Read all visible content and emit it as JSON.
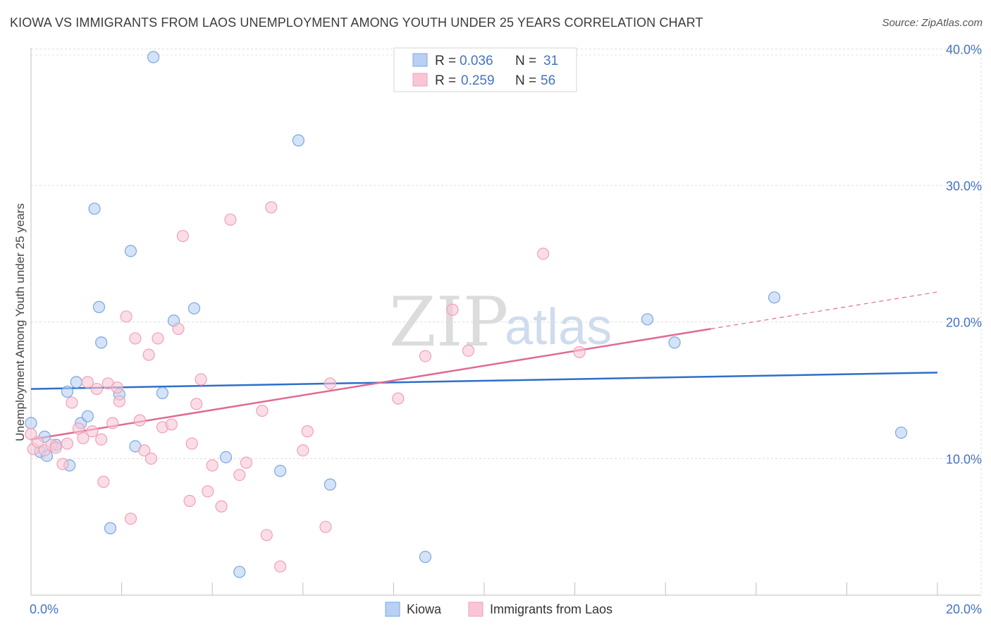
{
  "title": "KIOWA VS IMMIGRANTS FROM LAOS UNEMPLOYMENT AMONG YOUTH UNDER 25 YEARS CORRELATION CHART",
  "source": "Source: ZipAtlas.com",
  "watermark": {
    "zip": "ZIP",
    "atlas": "atlas"
  },
  "legend": {
    "rows": [
      {
        "r_label": "R = ",
        "r_value": "0.036",
        "n_label": "N = ",
        "n_value": "31"
      },
      {
        "r_label": "R = ",
        "r_value": "0.259",
        "n_label": "N = ",
        "n_value": "56"
      }
    ]
  },
  "bottom_legend": [
    "Kiowa",
    "Immigrants from Laos"
  ],
  "chart_data": {
    "type": "scatter",
    "title": "KIOWA VS IMMIGRANTS FROM LAOS UNEMPLOYMENT AMONG YOUTH UNDER 25 YEARS CORRELATION CHART",
    "xlabel": "",
    "ylabel": "Unemployment Among Youth under 25 years",
    "xlim": [
      0,
      20
    ],
    "ylim": [
      0,
      41
    ],
    "x_tick_labels": [
      {
        "value": 0,
        "label": "0.0%"
      },
      {
        "value": 20,
        "label": "20.0%"
      }
    ],
    "y_tick_labels": [
      {
        "value": 10,
        "label": "10.0%"
      },
      {
        "value": 20,
        "label": "20.0%"
      },
      {
        "value": 30,
        "label": "30.0%"
      },
      {
        "value": 40,
        "label": "40.0%"
      }
    ],
    "colors": {
      "kiowa": "#7aa7e0",
      "kiowa_line": "#2e6fc9",
      "laos": "#f0a0b8",
      "laos_line": "#e06a93",
      "tick": "#4472c4"
    },
    "series": [
      {
        "name": "Kiowa",
        "r": 0.036,
        "n": 31,
        "trend": {
          "x": [
            0,
            20
          ],
          "y": [
            15.1,
            16.3
          ]
        },
        "points": [
          [
            0.0,
            12.6
          ],
          [
            0.2,
            10.5
          ],
          [
            0.3,
            11.6
          ],
          [
            0.35,
            10.2
          ],
          [
            0.55,
            11.0
          ],
          [
            0.8,
            14.9
          ],
          [
            0.85,
            9.5
          ],
          [
            1.0,
            15.6
          ],
          [
            1.1,
            12.6
          ],
          [
            1.25,
            13.1
          ],
          [
            1.4,
            28.3
          ],
          [
            1.5,
            21.1
          ],
          [
            1.55,
            18.5
          ],
          [
            1.75,
            4.9
          ],
          [
            1.95,
            14.7
          ],
          [
            2.2,
            25.2
          ],
          [
            2.3,
            10.9
          ],
          [
            2.7,
            39.4
          ],
          [
            2.9,
            14.8
          ],
          [
            3.15,
            20.1
          ],
          [
            3.6,
            21.0
          ],
          [
            4.3,
            10.1
          ],
          [
            4.6,
            1.7
          ],
          [
            5.5,
            9.1
          ],
          [
            5.9,
            33.3
          ],
          [
            6.6,
            8.1
          ],
          [
            8.7,
            2.8
          ],
          [
            13.6,
            20.2
          ],
          [
            14.2,
            18.5
          ],
          [
            16.4,
            21.8
          ],
          [
            19.2,
            11.9
          ]
        ]
      },
      {
        "name": "Immigrants from Laos",
        "r": 0.259,
        "n": 56,
        "trend": {
          "x": [
            0,
            15
          ],
          "y": [
            11.4,
            19.5
          ]
        },
        "trend_extension": {
          "x": [
            15,
            20
          ],
          "y": [
            19.5,
            22.2
          ]
        },
        "points": [
          [
            0.0,
            11.8
          ],
          [
            0.05,
            10.7
          ],
          [
            0.15,
            11.2
          ],
          [
            0.3,
            10.6
          ],
          [
            0.45,
            11.0
          ],
          [
            0.55,
            10.8
          ],
          [
            0.7,
            9.6
          ],
          [
            0.8,
            11.1
          ],
          [
            0.9,
            14.1
          ],
          [
            1.05,
            12.2
          ],
          [
            1.15,
            11.5
          ],
          [
            1.25,
            15.6
          ],
          [
            1.35,
            12.0
          ],
          [
            1.45,
            15.1
          ],
          [
            1.55,
            11.4
          ],
          [
            1.6,
            8.3
          ],
          [
            1.7,
            15.5
          ],
          [
            1.8,
            12.6
          ],
          [
            1.9,
            15.2
          ],
          [
            1.95,
            14.2
          ],
          [
            2.1,
            20.4
          ],
          [
            2.2,
            5.6
          ],
          [
            2.3,
            18.8
          ],
          [
            2.4,
            12.8
          ],
          [
            2.5,
            10.6
          ],
          [
            2.6,
            17.6
          ],
          [
            2.65,
            10.0
          ],
          [
            2.8,
            18.8
          ],
          [
            2.9,
            12.3
          ],
          [
            3.1,
            12.5
          ],
          [
            3.25,
            19.5
          ],
          [
            3.35,
            26.3
          ],
          [
            3.5,
            6.9
          ],
          [
            3.55,
            11.1
          ],
          [
            3.65,
            14.0
          ],
          [
            3.75,
            15.8
          ],
          [
            3.9,
            7.6
          ],
          [
            4.0,
            9.5
          ],
          [
            4.2,
            6.5
          ],
          [
            4.4,
            27.5
          ],
          [
            4.6,
            8.8
          ],
          [
            4.75,
            9.7
          ],
          [
            5.1,
            13.5
          ],
          [
            5.2,
            4.4
          ],
          [
            5.3,
            28.4
          ],
          [
            5.5,
            2.1
          ],
          [
            6.0,
            10.6
          ],
          [
            6.1,
            12.0
          ],
          [
            6.5,
            5.0
          ],
          [
            6.6,
            15.5
          ],
          [
            8.1,
            14.4
          ],
          [
            8.7,
            17.5
          ],
          [
            9.3,
            20.9
          ],
          [
            9.65,
            17.9
          ],
          [
            11.3,
            25.0
          ],
          [
            12.1,
            17.8
          ]
        ]
      }
    ]
  }
}
